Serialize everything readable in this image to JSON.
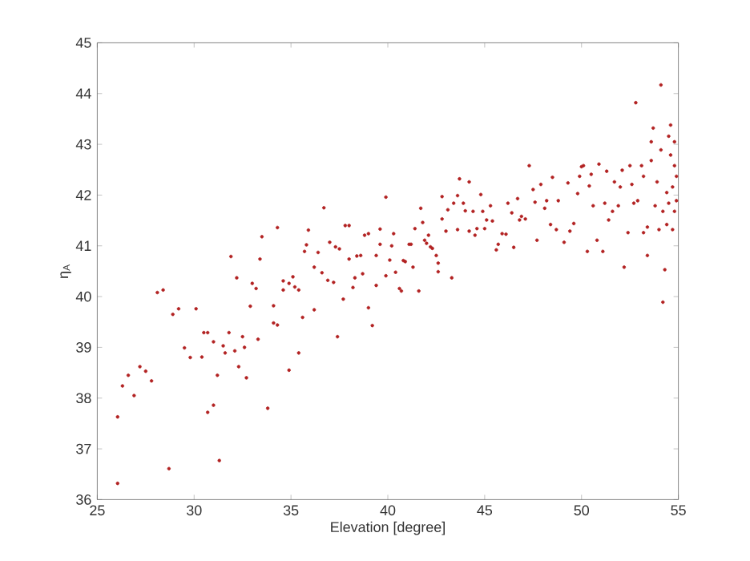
{
  "chart_data": {
    "type": "scatter",
    "xlabel": "Elevation [degree]",
    "ylabel": "η$_{A}$",
    "xlim": [
      25,
      55
    ],
    "xticks": [
      25,
      30,
      35,
      40,
      45,
      50,
      55
    ],
    "ylim": [
      36,
      45
    ],
    "yticks": [
      36,
      37,
      38,
      39,
      40,
      41,
      42,
      43,
      44,
      45
    ],
    "grid": false,
    "marker": "circle",
    "series": [
      {
        "color": "#b22222",
        "x": [
          26.05,
          26.05,
          26.3,
          26.6,
          26.9,
          27.2,
          27.5,
          27.8,
          28.1,
          28.4,
          28.7,
          28.9,
          29.2,
          29.5,
          29.8,
          30.1,
          30.4,
          30.5,
          30.7,
          30.7,
          31.0,
          31.0,
          31.2,
          31.3,
          31.5,
          31.6,
          31.8,
          31.9,
          32.1,
          32.2,
          32.3,
          32.5,
          32.6,
          32.7,
          32.9,
          33.0,
          33.2,
          33.3,
          33.4,
          33.5,
          33.8,
          34.1,
          34.1,
          34.3,
          34.3,
          34.6,
          34.6,
          34.9,
          34.9,
          35.1,
          35.2,
          35.4,
          35.4,
          35.6,
          35.7,
          35.8,
          35.9,
          36.2,
          36.2,
          36.4,
          36.6,
          36.7,
          36.9,
          37.0,
          37.2,
          37.3,
          37.4,
          37.5,
          37.7,
          37.8,
          38.0,
          38.0,
          38.2,
          38.3,
          38.4,
          38.6,
          38.7,
          38.8,
          39.0,
          39.0,
          39.2,
          39.4,
          39.4,
          39.6,
          39.6,
          39.9,
          39.9,
          40.1,
          40.2,
          40.3,
          40.4,
          40.6,
          40.7,
          40.8,
          40.9,
          41.1,
          41.2,
          41.3,
          41.4,
          41.6,
          41.7,
          41.8,
          41.9,
          42.0,
          42.1,
          42.2,
          42.3,
          42.5,
          42.6,
          42.6,
          42.8,
          42.8,
          43.0,
          43.1,
          43.3,
          43.4,
          43.6,
          43.6,
          43.7,
          43.9,
          44.0,
          44.2,
          44.2,
          44.4,
          44.5,
          44.6,
          44.8,
          44.9,
          45.0,
          45.1,
          45.3,
          45.4,
          45.6,
          45.7,
          45.9,
          46.1,
          46.2,
          46.4,
          46.5,
          46.7,
          46.8,
          46.9,
          47.1,
          47.3,
          47.5,
          47.6,
          47.7,
          47.9,
          48.1,
          48.2,
          48.4,
          48.5,
          48.7,
          48.8,
          49.1,
          49.3,
          49.4,
          49.6,
          49.8,
          49.9,
          50.0,
          50.1,
          50.3,
          50.4,
          50.5,
          50.6,
          50.8,
          50.9,
          51.1,
          51.2,
          51.3,
          51.4,
          51.6,
          51.7,
          51.9,
          52.0,
          52.1,
          52.2,
          52.4,
          52.5,
          52.6,
          52.7,
          52.8,
          52.9,
          53.1,
          53.2,
          53.2,
          53.4,
          53.4,
          53.6,
          53.6,
          53.7,
          53.8,
          53.9,
          54.0,
          54.1,
          54.1,
          54.2,
          54.2,
          54.3,
          54.4,
          54.4,
          54.5,
          54.5,
          54.6,
          54.6,
          54.7,
          54.7,
          54.8,
          54.8,
          54.8,
          54.9,
          54.9
        ],
        "values": [
          36.32,
          37.63,
          38.24,
          38.45,
          38.05,
          38.62,
          38.53,
          38.34,
          40.08,
          40.13,
          36.61,
          39.65,
          39.76,
          38.99,
          38.8,
          39.76,
          38.81,
          39.29,
          37.72,
          39.29,
          39.11,
          37.86,
          38.45,
          36.77,
          39.03,
          38.89,
          39.29,
          40.79,
          38.93,
          40.37,
          38.62,
          39.21,
          39.0,
          38.4,
          39.81,
          40.26,
          40.16,
          39.16,
          40.74,
          41.18,
          37.8,
          39.82,
          39.48,
          39.44,
          41.36,
          40.31,
          40.13,
          38.55,
          40.26,
          40.39,
          40.19,
          38.89,
          40.13,
          39.59,
          40.89,
          41.02,
          41.31,
          39.74,
          40.58,
          40.87,
          40.47,
          41.75,
          40.32,
          41.07,
          40.28,
          40.98,
          39.21,
          40.94,
          39.95,
          41.4,
          41.4,
          40.74,
          40.18,
          40.37,
          40.8,
          40.81,
          40.45,
          41.21,
          41.24,
          39.78,
          39.43,
          40.22,
          40.81,
          41.33,
          41.03,
          41.96,
          40.41,
          40.72,
          41.0,
          41.24,
          40.48,
          40.16,
          40.11,
          40.71,
          40.69,
          41.03,
          41.03,
          40.58,
          41.34,
          40.11,
          41.74,
          41.46,
          41.11,
          41.05,
          41.21,
          40.98,
          40.95,
          40.81,
          40.66,
          40.49,
          41.53,
          41.97,
          41.29,
          41.71,
          40.37,
          41.84,
          41.99,
          41.32,
          42.32,
          41.84,
          41.69,
          42.26,
          41.29,
          41.68,
          41.21,
          41.34,
          42.01,
          41.68,
          41.34,
          41.51,
          41.79,
          41.49,
          40.92,
          41.03,
          41.24,
          41.23,
          41.84,
          41.65,
          40.97,
          41.93,
          41.51,
          41.58,
          41.53,
          42.58,
          42.11,
          41.86,
          41.11,
          42.21,
          41.74,
          41.89,
          41.42,
          42.35,
          41.32,
          41.89,
          41.07,
          42.24,
          41.29,
          41.44,
          42.03,
          42.37,
          42.56,
          42.58,
          40.89,
          42.18,
          42.41,
          41.79,
          41.11,
          42.61,
          40.89,
          41.84,
          42.47,
          41.51,
          41.68,
          42.26,
          41.79,
          42.16,
          42.49,
          40.58,
          41.26,
          42.58,
          42.21,
          41.84,
          43.82,
          41.89,
          42.58,
          41.26,
          42.37,
          40.81,
          41.37,
          43.05,
          42.68,
          43.32,
          41.79,
          42.26,
          41.32,
          44.17,
          42.89,
          39.89,
          41.68,
          40.53,
          42.05,
          41.42,
          43.16,
          41.84,
          42.79,
          43.38,
          42.16,
          41.32,
          42.58,
          43.05,
          41.68,
          42.37,
          41.89
        ]
      }
    ]
  }
}
